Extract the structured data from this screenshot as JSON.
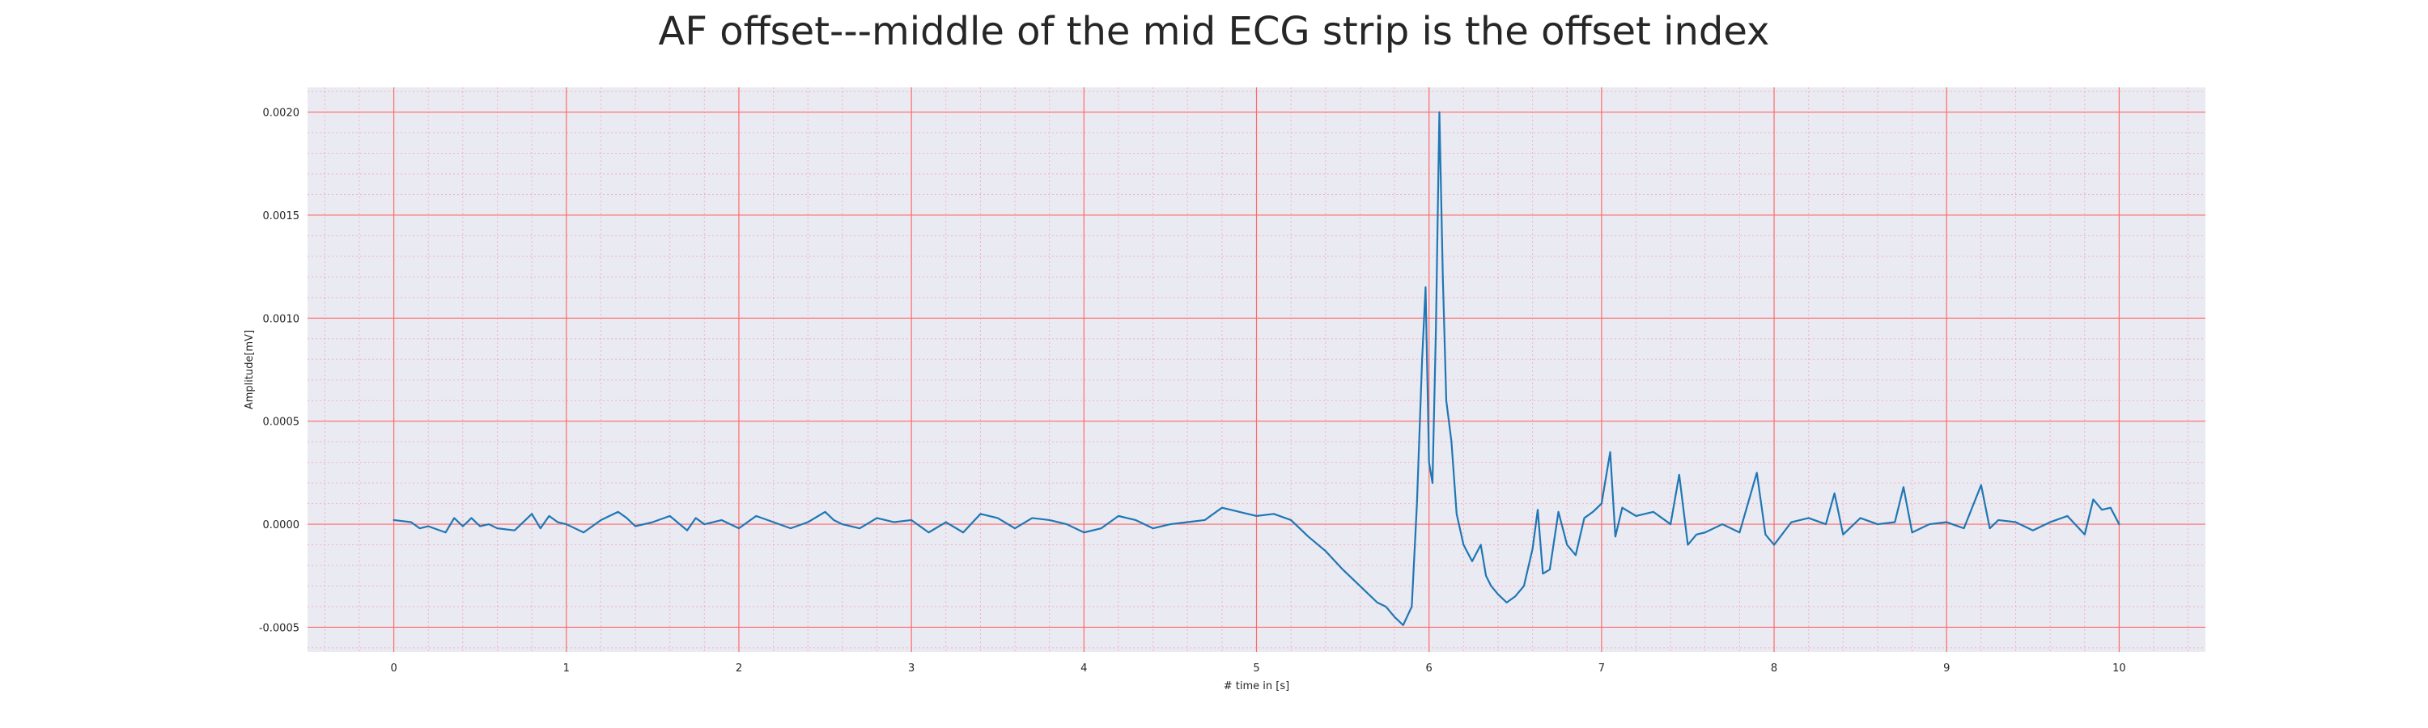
{
  "chart_data": {
    "type": "line",
    "title": "AF offset---middle of the mid ECG strip is the offset index",
    "xlabel": "# time in [s]",
    "ylabel": "Amplitude[mV]",
    "xlim": [
      -0.5,
      10.5
    ],
    "ylim": [
      -0.00062,
      0.00212
    ],
    "x_ticks": [
      0,
      1,
      2,
      3,
      4,
      5,
      6,
      7,
      8,
      9,
      10
    ],
    "x_tick_labels": [
      "0",
      "1",
      "2",
      "3",
      "4",
      "5",
      "6",
      "7",
      "8",
      "9",
      "10"
    ],
    "y_ticks": [
      -0.0005,
      0.0,
      0.0005,
      0.001,
      0.0015,
      0.002
    ],
    "y_tick_labels": [
      "-0.0005",
      "0.0000",
      "0.0005",
      "0.0010",
      "0.0015",
      "0.0020"
    ],
    "grid": true,
    "minor_grid": true,
    "legend": "none",
    "colors": {
      "background": "#eaeaf2",
      "major_grid": "#ff6b6b",
      "minor_grid": "#f4a6b4",
      "line": "#1f77b4",
      "text": "#262626"
    },
    "series": [
      {
        "x": [
          0.0,
          0.1,
          0.15,
          0.2,
          0.3,
          0.35,
          0.4,
          0.45,
          0.5,
          0.55,
          0.6,
          0.7,
          0.8,
          0.85,
          0.9,
          0.95,
          1.0,
          1.1,
          1.2,
          1.3,
          1.35,
          1.4,
          1.5,
          1.6,
          1.7,
          1.75,
          1.8,
          1.9,
          2.0,
          2.1,
          2.2,
          2.3,
          2.4,
          2.5,
          2.55,
          2.6,
          2.7,
          2.8,
          2.9,
          3.0,
          3.1,
          3.2,
          3.3,
          3.4,
          3.5,
          3.6,
          3.7,
          3.8,
          3.9,
          4.0,
          4.1,
          4.2,
          4.3,
          4.4,
          4.5,
          4.6,
          4.7,
          4.8,
          4.9,
          5.0,
          5.1,
          5.2,
          5.3,
          5.4,
          5.5,
          5.6,
          5.7,
          5.75,
          5.8,
          5.85,
          5.9,
          5.93,
          5.96,
          5.98,
          6.0,
          6.02,
          6.04,
          6.06,
          6.08,
          6.1,
          6.13,
          6.16,
          6.2,
          6.25,
          6.3,
          6.33,
          6.36,
          6.4,
          6.45,
          6.5,
          6.55,
          6.6,
          6.63,
          6.66,
          6.7,
          6.75,
          6.8,
          6.85,
          6.9,
          6.95,
          7.0,
          7.05,
          7.08,
          7.12,
          7.2,
          7.3,
          7.4,
          7.45,
          7.5,
          7.55,
          7.6,
          7.7,
          7.8,
          7.9,
          7.95,
          8.0,
          8.1,
          8.2,
          8.3,
          8.35,
          8.4,
          8.5,
          8.6,
          8.7,
          8.75,
          8.8,
          8.9,
          9.0,
          9.1,
          9.2,
          9.25,
          9.3,
          9.4,
          9.5,
          9.6,
          9.7,
          9.8,
          9.85,
          9.9,
          9.95,
          10.0
        ],
        "y": [
          2e-05,
          1e-05,
          -2e-05,
          -1e-05,
          -4e-05,
          3e-05,
          -1e-05,
          3e-05,
          -1e-05,
          0.0,
          -2e-05,
          -3e-05,
          5e-05,
          -2e-05,
          4e-05,
          1e-05,
          0.0,
          -4e-05,
          2e-05,
          6e-05,
          3e-05,
          -1e-05,
          1e-05,
          4e-05,
          -3e-05,
          3e-05,
          0.0,
          2e-05,
          -2e-05,
          4e-05,
          1e-05,
          -2e-05,
          1e-05,
          6e-05,
          2e-05,
          0.0,
          -2e-05,
          3e-05,
          1e-05,
          2e-05,
          -4e-05,
          1e-05,
          -4e-05,
          5e-05,
          3e-05,
          -2e-05,
          3e-05,
          2e-05,
          0.0,
          -4e-05,
          -2e-05,
          4e-05,
          2e-05,
          -2e-05,
          0.0,
          1e-05,
          2e-05,
          8e-05,
          6e-05,
          4e-05,
          5e-05,
          2e-05,
          -6e-05,
          -0.00013,
          -0.00022,
          -0.0003,
          -0.00038,
          -0.0004,
          -0.00045,
          -0.00049,
          -0.0004,
          0.0001,
          0.0008,
          0.00115,
          0.0003,
          0.0002,
          0.00095,
          0.002,
          0.0012,
          0.0006,
          0.0004,
          5e-05,
          -0.0001,
          -0.00018,
          -0.0001,
          -0.00025,
          -0.0003,
          -0.00034,
          -0.00038,
          -0.00035,
          -0.0003,
          -0.00012,
          7e-05,
          -0.00024,
          -0.00022,
          6e-05,
          -0.0001,
          -0.00015,
          3e-05,
          6e-05,
          0.0001,
          0.00035,
          -6e-05,
          8e-05,
          4e-05,
          6e-05,
          0.0,
          0.00024,
          -0.0001,
          -5e-05,
          -4e-05,
          0.0,
          -4e-05,
          0.00025,
          -5e-05,
          -0.0001,
          1e-05,
          3e-05,
          0.0,
          0.00015,
          -5e-05,
          3e-05,
          0.0,
          1e-05,
          0.00018,
          -4e-05,
          0.0,
          1e-05,
          -2e-05,
          0.00019,
          -2e-05,
          2e-05,
          1e-05,
          -3e-05,
          1e-05,
          4e-05,
          -5e-05,
          0.00012,
          7e-05,
          8e-05,
          0.0
        ]
      }
    ]
  }
}
